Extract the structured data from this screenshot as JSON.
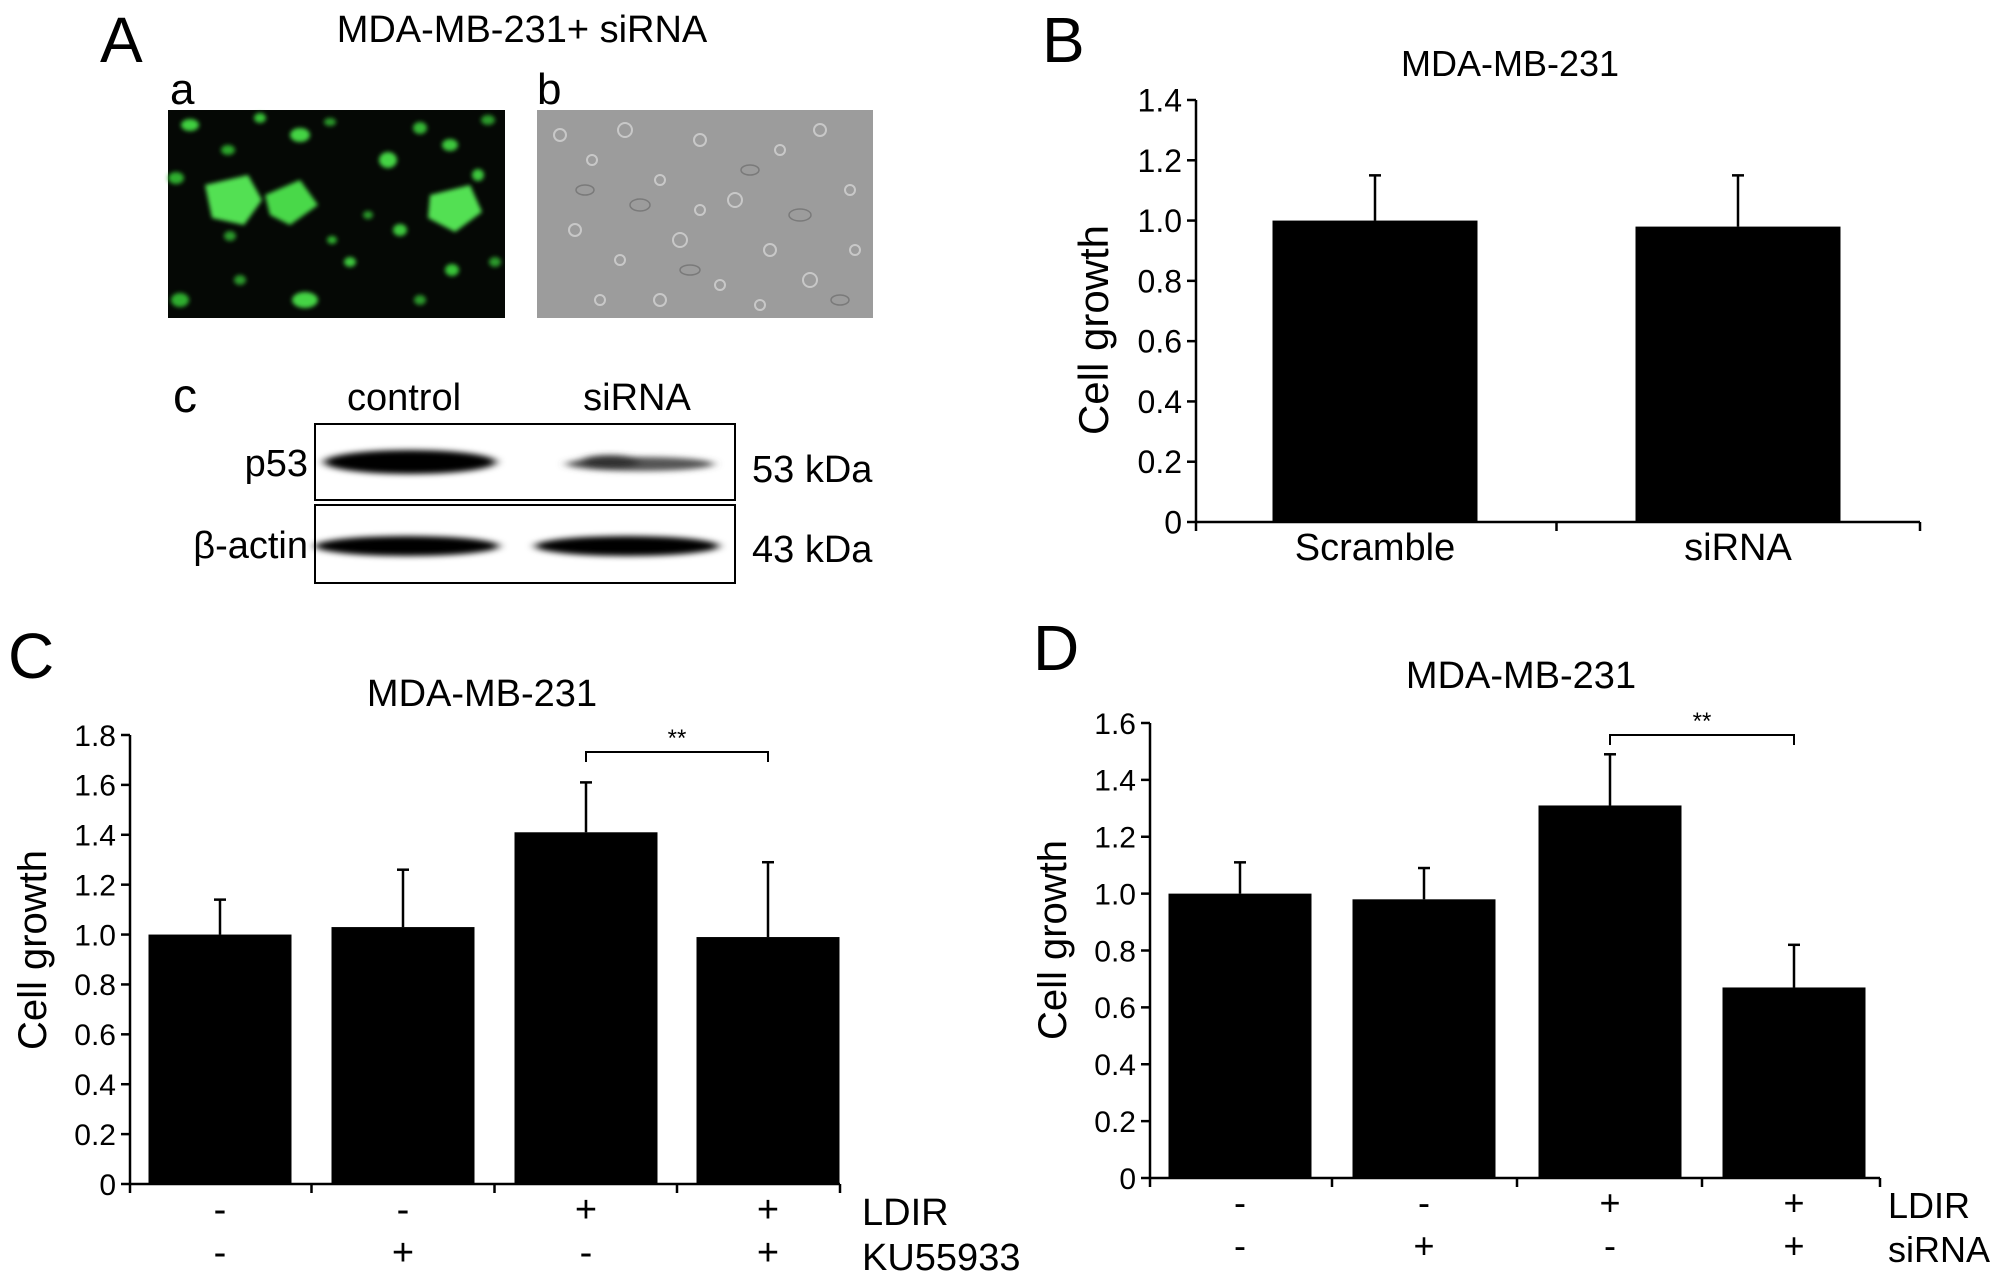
{
  "panel_labels": {
    "A": "A",
    "B": "B",
    "C": "C",
    "D": "D"
  },
  "panel_a": {
    "title": "MDA-MB-231+ siRNA",
    "sub_a": "a",
    "sub_b": "b",
    "sub_c": "c",
    "blot": {
      "lanes": [
        "control",
        "siRNA"
      ],
      "rows": [
        {
          "name": "p53",
          "size": "53 kDa",
          "intensity": [
            1.0,
            0.35
          ]
        },
        {
          "name": "β-actin",
          "size": "43 kDa",
          "intensity": [
            1.0,
            1.0
          ]
        }
      ]
    }
  },
  "chart_data": [
    {
      "panel": "B",
      "type": "bar",
      "title": "MDA-MB-231",
      "ylabel": "Cell growth",
      "xlabel": "",
      "categories": [
        "Scramble",
        "siRNA"
      ],
      "values": [
        1.0,
        0.98
      ],
      "errors": [
        0.15,
        0.17
      ],
      "ylim": [
        0,
        1.4
      ],
      "yticks": [
        "0",
        "0.2",
        "0.4",
        "0.6",
        "0.8",
        "1.0",
        "1.2",
        "1.4"
      ],
      "grid": false
    },
    {
      "panel": "C",
      "type": "bar",
      "title": "MDA-MB-231",
      "ylabel": "Cell growth",
      "categories": [
        "",
        "",
        "",
        ""
      ],
      "values": [
        1.0,
        1.03,
        1.41,
        0.99
      ],
      "errors": [
        0.14,
        0.23,
        0.2,
        0.3
      ],
      "ylim": [
        0,
        1.8
      ],
      "yticks": [
        "0",
        "0.2",
        "0.4",
        "0.6",
        "0.8",
        "1.0",
        "1.2",
        "1.4",
        "1.6",
        "1.8"
      ],
      "treatments": [
        {
          "name": "LDIR",
          "signs": [
            "-",
            "-",
            "+",
            "+"
          ]
        },
        {
          "name": "KU55933",
          "signs": [
            "-",
            "+",
            "-",
            "+"
          ]
        }
      ],
      "significance": {
        "from": 2,
        "to": 3,
        "label": "**"
      },
      "grid": false
    },
    {
      "panel": "D",
      "type": "bar",
      "title": "MDA-MB-231",
      "ylabel": "Cell growth",
      "categories": [
        "",
        "",
        "",
        ""
      ],
      "values": [
        1.0,
        0.98,
        1.31,
        0.67
      ],
      "errors": [
        0.11,
        0.11,
        0.18,
        0.15
      ],
      "ylim": [
        0,
        1.6
      ],
      "yticks": [
        "0",
        "0.2",
        "0.4",
        "0.6",
        "0.8",
        "1.0",
        "1.2",
        "1.4",
        "1.6"
      ],
      "treatments": [
        {
          "name": "LDIR",
          "signs": [
            "-",
            "-",
            "+",
            "+"
          ]
        },
        {
          "name": "siRNA",
          "signs": [
            "-",
            "+",
            "-",
            "+"
          ]
        }
      ],
      "significance": {
        "from": 2,
        "to": 3,
        "label": "**"
      },
      "grid": false
    }
  ]
}
